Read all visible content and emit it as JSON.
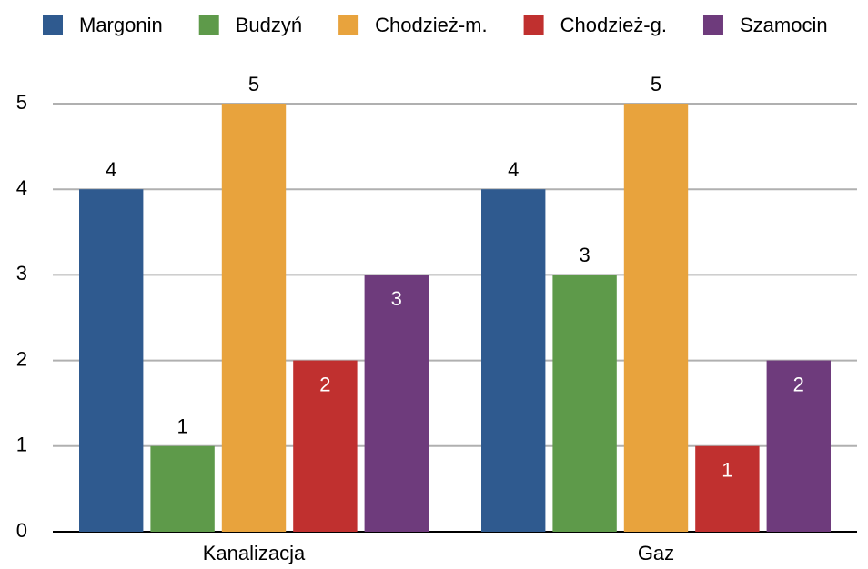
{
  "chart_data": {
    "type": "bar",
    "categories": [
      "Kanalizacja",
      "Gaz"
    ],
    "series": [
      {
        "name": "Margonin",
        "color": "#2f5a8f",
        "values": [
          4,
          4
        ],
        "label_position": "outside"
      },
      {
        "name": "Budzyń",
        "color": "#5e9a4a",
        "values": [
          1,
          3
        ],
        "label_position": "outside"
      },
      {
        "name": "Chodzież-m.",
        "color": "#e8a33d",
        "values": [
          5,
          5
        ],
        "label_position": "outside"
      },
      {
        "name": "Chodzież-g.",
        "color": "#c0302f",
        "values": [
          2,
          1
        ],
        "label_position": "inside"
      },
      {
        "name": "Szamocin",
        "color": "#6e3b7c",
        "values": [
          3,
          2
        ],
        "label_position": "inside"
      }
    ],
    "ylim": [
      0,
      5
    ],
    "yticks": [
      0,
      1,
      2,
      3,
      4,
      5
    ],
    "grid": true,
    "legend": "top"
  }
}
